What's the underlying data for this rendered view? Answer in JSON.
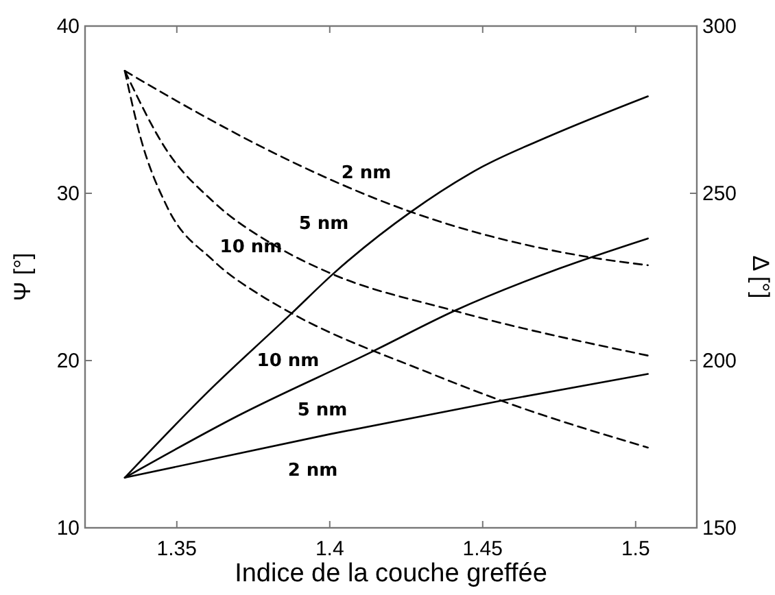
{
  "chart_data": {
    "type": "line",
    "xlabel": "Indice de la couche greffée",
    "ylabel": "Ψ [°]",
    "y2label": "Δ [°]",
    "xlim": [
      1.32,
      1.52
    ],
    "xticks": [
      1.35,
      1.4,
      1.45,
      1.5
    ],
    "ylim": [
      10,
      40
    ],
    "yticks": [
      10,
      20,
      30,
      40
    ],
    "y2lim": [
      150,
      300
    ],
    "y2ticks": [
      150,
      200,
      250,
      300
    ],
    "grid": false,
    "series": [
      {
        "name": "10 nm",
        "color": "#000000",
        "line_style": "solid",
        "x": [
          1.333,
          1.36,
          1.3874,
          1.4012,
          1.4266,
          1.45,
          1.4716,
          1.504
        ],
        "values": [
          13,
          18.1,
          22.8,
          25.2,
          28.9,
          31.6,
          33.4,
          35.8
        ]
      },
      {
        "name": "5 nm",
        "color": "#000000",
        "line_style": "solid",
        "x": [
          1.333,
          1.37,
          1.4135,
          1.4411,
          1.475,
          1.504
        ],
        "values": [
          13,
          16.7,
          20.5,
          23.0,
          25.5,
          27.3
        ]
      },
      {
        "name": "2 nm",
        "color": "#000000",
        "line_style": "solid",
        "x": [
          1.333,
          1.4,
          1.4561,
          1.504
        ],
        "values": [
          13,
          15.6,
          17.6,
          19.2
        ]
      },
      {
        "name": "2 nm",
        "color": "#000000",
        "line_style": "dashed",
        "axis": "y2",
        "x": [
          1.333,
          1.3564,
          1.3775,
          1.4273,
          1.4856,
          1.504
        ],
        "values": [
          286.6,
          274.3,
          264,
          244.2,
          230.8,
          228.5
        ]
      },
      {
        "name": "5 nm",
        "color": "#000000",
        "line_style": "dashed",
        "axis": "y2",
        "x": [
          1.333,
          1.3468,
          1.3618,
          1.3828,
          1.3992,
          1.4411,
          1.504
        ],
        "values": [
          286.6,
          262.7,
          247.6,
          234,
          226.5,
          214.8,
          201.5
        ]
      },
      {
        "name": "10 nm",
        "color": "#000000",
        "line_style": "dashed",
        "axis": "y2",
        "x": [
          1.333,
          1.3381,
          1.3468,
          1.3618,
          1.3783,
          1.3874,
          1.4323,
          1.4561,
          1.504
        ],
        "values": [
          286.6,
          266.8,
          246,
          230,
          219,
          214.2,
          196.4,
          188,
          174
        ]
      }
    ]
  }
}
